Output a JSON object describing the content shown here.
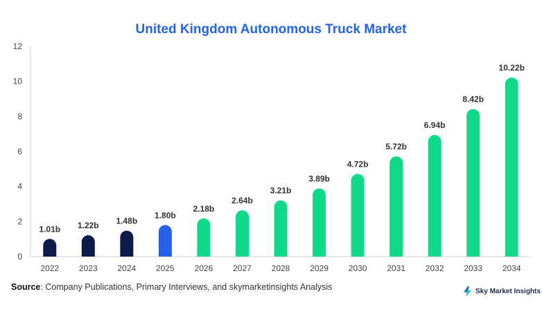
{
  "chart_data": {
    "type": "bar",
    "title": "United Kingdom Autonomous Truck Market",
    "categories": [
      "2022",
      "2023",
      "2024",
      "2025",
      "2026",
      "2027",
      "2028",
      "2029",
      "2030",
      "2031",
      "2032",
      "2033",
      "2034"
    ],
    "values": [
      1.01,
      1.22,
      1.48,
      1.8,
      2.18,
      2.64,
      3.21,
      3.89,
      4.72,
      5.72,
      6.94,
      8.42,
      10.22
    ],
    "data_labels": [
      "1.01b",
      "1.22b",
      "1.48b",
      "1.80b",
      "2.18b",
      "2.64b",
      "3.21b",
      "3.89b",
      "4.72b",
      "5.72b",
      "6.94b",
      "8.42b",
      "10.22b"
    ],
    "yticks": [
      "0",
      "2",
      "4",
      "6",
      "8",
      "10",
      "12"
    ],
    "ylim": [
      0,
      12
    ],
    "xlabel": "",
    "ylabel": "",
    "grid": false,
    "bar_colors": [
      "#0d1b4c",
      "#0d1b4c",
      "#0d1b4c",
      "#2563eb",
      "#10d98a",
      "#10d98a",
      "#10d98a",
      "#10d98a",
      "#10d98a",
      "#10d98a",
      "#10d98a",
      "#10d98a",
      "#10d98a"
    ]
  },
  "source": {
    "label": "Source",
    "text": ": Company Publications, Primary Interviews, and skymarketinsights Analysis"
  },
  "logo": {
    "text": "Sky Market Insights",
    "icon": "lightning-bolt-icon"
  }
}
